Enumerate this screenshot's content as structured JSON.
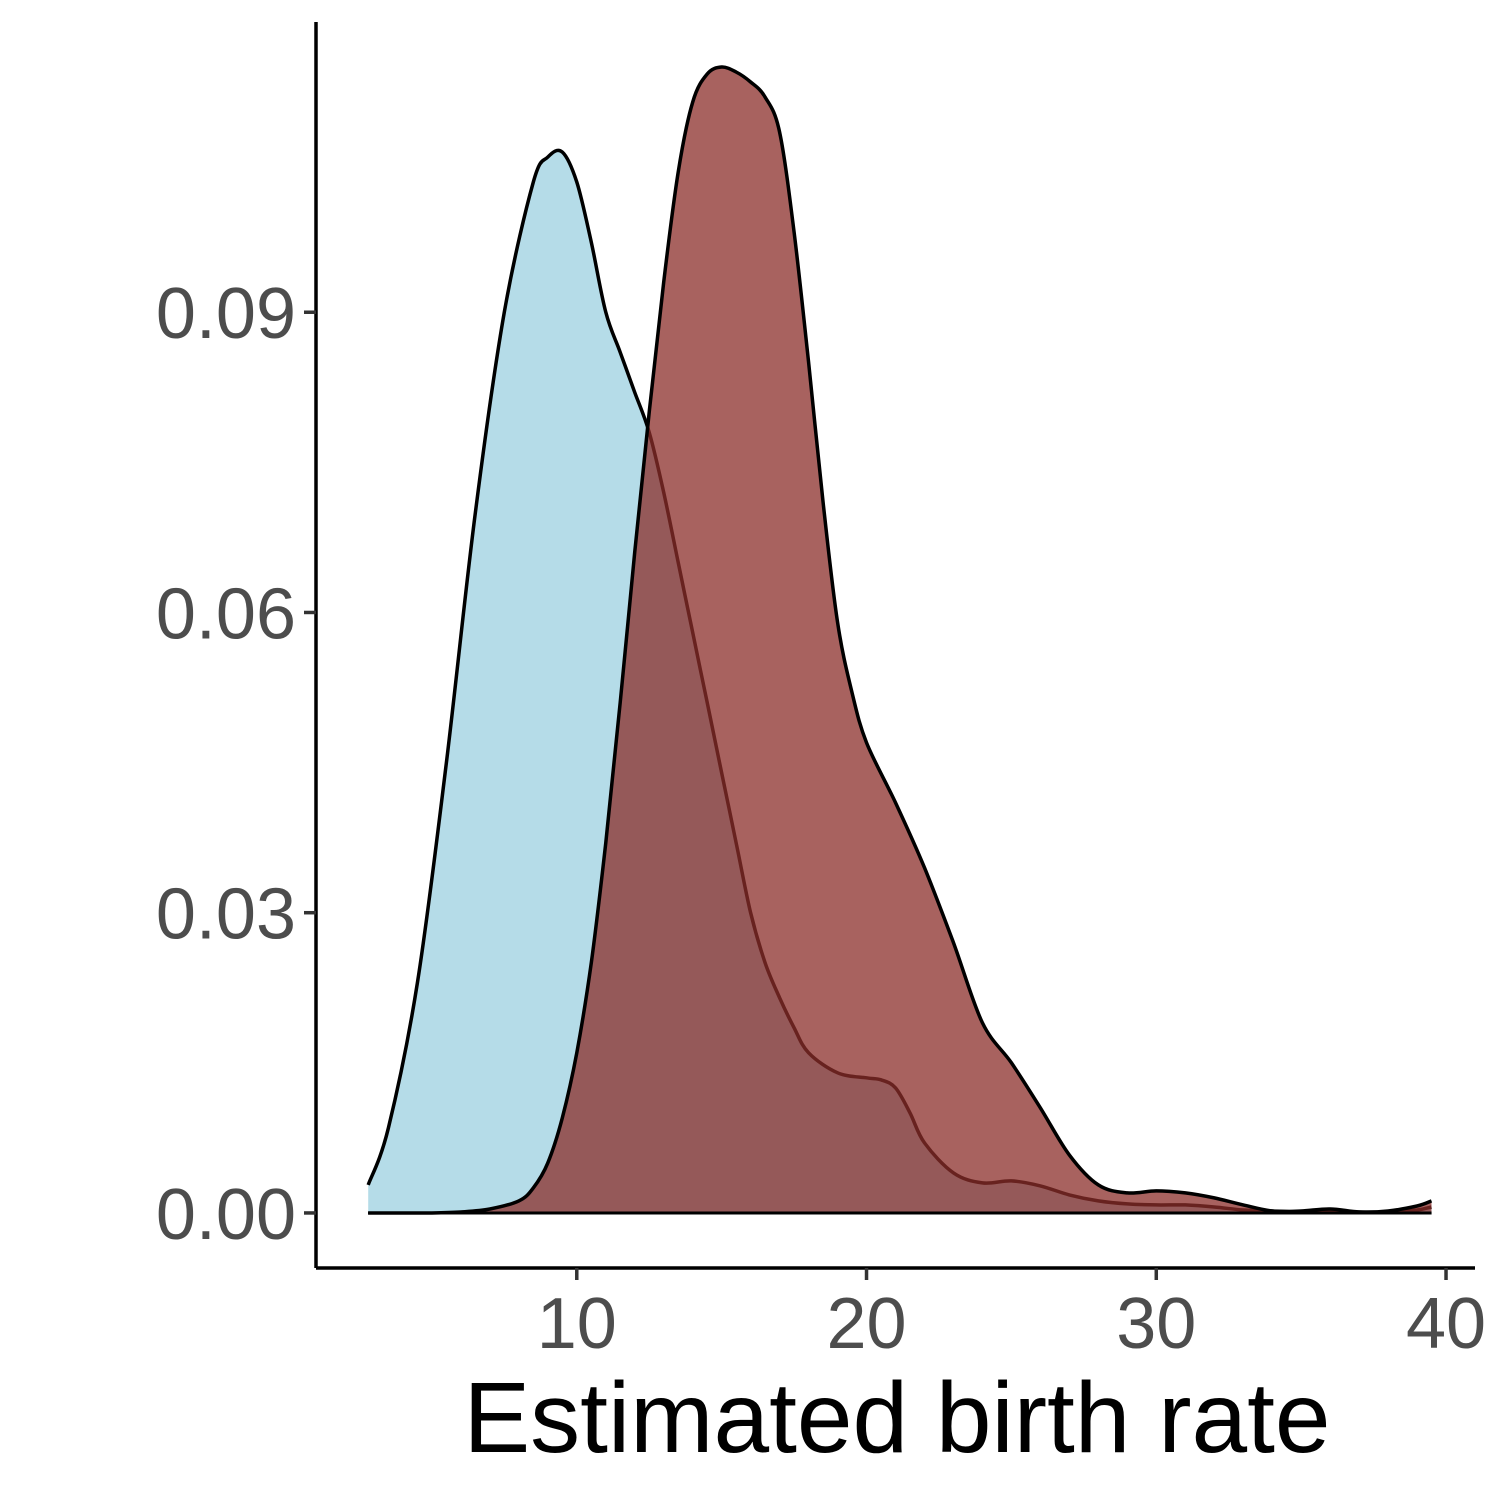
{
  "chart_data": {
    "type": "area",
    "title": "",
    "xlabel": "Estimated birth rate",
    "ylabel": "",
    "xlim": [
      1,
      41
    ],
    "ylim": [
      -0.0055,
      0.119
    ],
    "x_ticks": [
      10,
      20,
      30,
      40
    ],
    "x_tick_labels": [
      "10",
      "20",
      "30",
      "40"
    ],
    "y_ticks": [
      0.0,
      0.03,
      0.06,
      0.09
    ],
    "y_tick_labels": [
      "0.00",
      "0.03",
      "0.06",
      "0.09"
    ],
    "grid": false,
    "legend": "none",
    "series": [
      {
        "color": "#add8e6",
        "opacity": 0.9,
        "x": [
          2.8,
          3.5,
          4.5,
          5.5,
          6.5,
          7.5,
          8.5,
          9.0,
          9.5,
          10.0,
          10.5,
          11.0,
          11.5,
          12.0,
          12.5,
          13.0,
          13.5,
          14.0,
          14.5,
          15.0,
          15.5,
          16.0,
          16.5,
          17.0,
          17.5,
          18.0,
          19.0,
          20.0,
          20.5,
          21.0,
          21.5,
          22.0,
          23.0,
          24.0,
          25.0,
          26.0,
          27.0,
          28.0,
          29.0,
          30.0,
          31.0,
          32.0,
          33.0,
          34.0,
          35.0,
          36.0,
          37.0,
          38.0,
          39.0,
          39.5
        ],
        "values": [
          0.0028,
          0.0085,
          0.023,
          0.045,
          0.07,
          0.09,
          0.103,
          0.1055,
          0.106,
          0.103,
          0.097,
          0.09,
          0.086,
          0.082,
          0.078,
          0.072,
          0.065,
          0.058,
          0.051,
          0.044,
          0.037,
          0.03,
          0.025,
          0.0215,
          0.0185,
          0.016,
          0.014,
          0.0135,
          0.0133,
          0.0125,
          0.01,
          0.007,
          0.004,
          0.003,
          0.0032,
          0.0027,
          0.0018,
          0.0012,
          0.0009,
          0.0008,
          0.0008,
          0.0006,
          0.0003,
          0.0002,
          0.0001,
          0.0001,
          0.0001,
          0.0001,
          0.0003,
          0.0006
        ]
      },
      {
        "color": "#8b2e2a",
        "opacity": 0.75,
        "x": [
          2.8,
          4.0,
          5.0,
          6.0,
          7.0,
          8.0,
          8.5,
          9.0,
          9.5,
          10.0,
          10.5,
          11.0,
          11.5,
          12.0,
          12.5,
          13.0,
          13.5,
          14.0,
          14.5,
          15.0,
          15.5,
          16.0,
          16.5,
          17.0,
          17.5,
          18.0,
          18.5,
          19.0,
          19.5,
          20.0,
          21.0,
          22.0,
          23.0,
          24.0,
          25.0,
          26.0,
          27.0,
          28.0,
          29.0,
          30.0,
          31.0,
          32.0,
          33.0,
          34.0,
          35.0,
          36.0,
          37.0,
          38.0,
          39.0,
          39.5
        ],
        "values": [
          0.0,
          0.0,
          0.0,
          0.0001,
          0.0004,
          0.0012,
          0.0025,
          0.005,
          0.0095,
          0.016,
          0.025,
          0.037,
          0.051,
          0.066,
          0.08,
          0.093,
          0.104,
          0.111,
          0.1138,
          0.1145,
          0.114,
          0.113,
          0.1115,
          0.108,
          0.098,
          0.085,
          0.071,
          0.059,
          0.052,
          0.047,
          0.041,
          0.0345,
          0.027,
          0.019,
          0.015,
          0.0105,
          0.0058,
          0.0028,
          0.002,
          0.0022,
          0.002,
          0.0015,
          0.0008,
          0.0002,
          0.0002,
          0.0004,
          0.0001,
          0.0002,
          0.0007,
          0.0012
        ]
      }
    ]
  }
}
